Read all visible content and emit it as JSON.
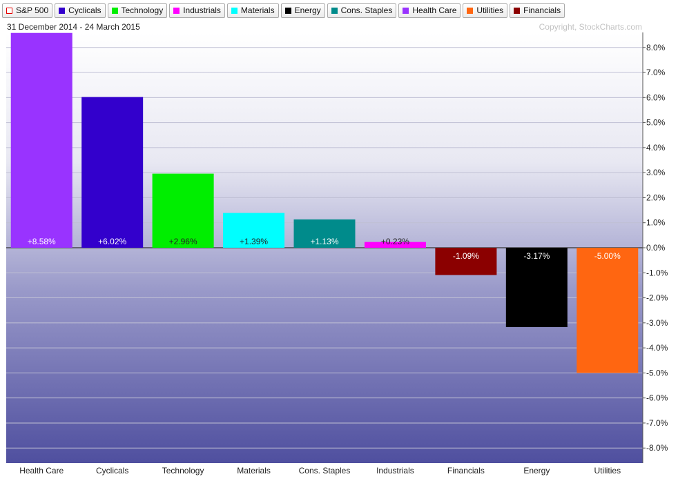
{
  "legend": [
    {
      "label": "S&P 500",
      "color": "#e60000",
      "hollow": true
    },
    {
      "label": "Cyclicals",
      "color": "#3300cc"
    },
    {
      "label": "Technology",
      "color": "#00ee00"
    },
    {
      "label": "Industrials",
      "color": "#ff00ff"
    },
    {
      "label": "Materials",
      "color": "#00ffff"
    },
    {
      "label": "Energy",
      "color": "#000000"
    },
    {
      "label": "Cons. Staples",
      "color": "#008b8b"
    },
    {
      "label": "Health Care",
      "color": "#9933ff"
    },
    {
      "label": "Utilities",
      "color": "#ff6611"
    },
    {
      "label": "Financials",
      "color": "#8b0000"
    }
  ],
  "header": {
    "date_range": "31 December 2014 - 24 March 2015",
    "copyright": "Copyright, StockCharts.com"
  },
  "chart_data": {
    "type": "bar",
    "categories": [
      "Health Care",
      "Cyclicals",
      "Technology",
      "Materials",
      "Cons. Staples",
      "Industrials",
      "Financials",
      "Energy",
      "Utilities"
    ],
    "values": [
      8.58,
      6.02,
      2.96,
      1.39,
      1.13,
      0.23,
      -1.09,
      -3.17,
      -5.0
    ],
    "labels": [
      "+8.58%",
      "+6.02%",
      "+2.96%",
      "+1.39%",
      "+1.13%",
      "+0.23%",
      "-1.09%",
      "-3.17%",
      "-5.00%"
    ],
    "colors": [
      "#9933ff",
      "#3300cc",
      "#00ee00",
      "#00ffff",
      "#008b8b",
      "#ff00ff",
      "#8b0000",
      "#000000",
      "#ff6611"
    ],
    "label_colors": [
      "#ffffff",
      "#ffffff",
      "#222222",
      "#222222",
      "#ffffff",
      "#222222",
      "#ffffff",
      "#ffffff",
      "#ffffff"
    ],
    "ylim": [
      -8.6,
      8.6
    ],
    "yticks": [
      8,
      7,
      6,
      5,
      4,
      3,
      2,
      1,
      0,
      -1,
      -2,
      -3,
      -4,
      -5,
      -6,
      -7,
      -8
    ],
    "ytick_labels": [
      "8.0%",
      "7.0%",
      "6.0%",
      "5.0%",
      "4.0%",
      "3.0%",
      "2.0%",
      "1.0%",
      "0.0%",
      "-1.0%",
      "-2.0%",
      "-3.0%",
      "-4.0%",
      "-5.0%",
      "-6.0%",
      "-7.0%",
      "-8.0%"
    ],
    "grid": true,
    "title": "",
    "xlabel": "",
    "ylabel": ""
  }
}
